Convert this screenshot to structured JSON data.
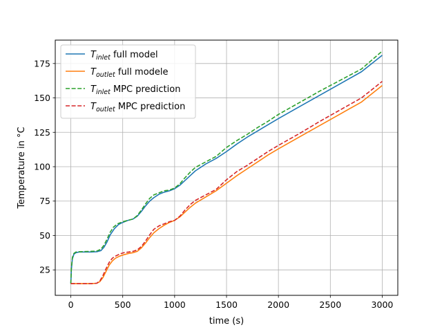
{
  "chart_data": {
    "type": "line",
    "title": "",
    "xlabel": "time (s)",
    "ylabel": "Temperature in °C",
    "xlim": [
      -150,
      3150
    ],
    "ylim": [
      6.5,
      192
    ],
    "xticks": [
      0,
      500,
      1000,
      1500,
      2000,
      2500,
      3000
    ],
    "yticks": [
      25,
      50,
      75,
      100,
      125,
      150,
      175
    ],
    "grid": true,
    "legend_position": "upper-left",
    "series": [
      {
        "name": "T_inlet full model",
        "label_main": "T",
        "label_sub": "inlet",
        "label_rest": " full model",
        "color": "#1f77b4",
        "dash": "solid",
        "x": [
          0,
          5,
          15,
          30,
          50,
          80,
          120,
          200,
          250,
          290,
          320,
          350,
          380,
          420,
          460,
          500,
          550,
          600,
          640,
          680,
          720,
          760,
          800,
          850,
          900,
          950,
          1000,
          1050,
          1100,
          1150,
          1200,
          1300,
          1400,
          1500,
          1600,
          1700,
          1800,
          1900,
          2000,
          2200,
          2400,
          2600,
          2800,
          3000
        ],
        "y": [
          15,
          25,
          33,
          36.5,
          37.5,
          38,
          38,
          38,
          38.2,
          39,
          41.5,
          45.5,
          50.5,
          55,
          58,
          59.5,
          61,
          62,
          64,
          67.5,
          71.5,
          75,
          77.5,
          80,
          81.5,
          82.5,
          84,
          86.5,
          90,
          93.5,
          97,
          102,
          106,
          111,
          116.5,
          121.5,
          126,
          130.5,
          135,
          143.5,
          152,
          160.5,
          169,
          181
        ]
      },
      {
        "name": "T_outlet full modele",
        "label_main": "T",
        "label_sub": "outlet",
        "label_rest": " full modele",
        "color": "#ff7f0e",
        "dash": "solid",
        "x": [
          0,
          50,
          100,
          200,
          250,
          280,
          310,
          340,
          370,
          400,
          430,
          470,
          510,
          560,
          600,
          640,
          680,
          720,
          760,
          800,
          850,
          900,
          950,
          1000,
          1050,
          1100,
          1150,
          1200,
          1300,
          1400,
          1500,
          1600,
          1700,
          1800,
          1900,
          2000,
          2200,
          2400,
          2600,
          2800,
          3000
        ],
        "y": [
          15,
          15,
          15,
          15,
          15.3,
          16.5,
          19.5,
          24,
          28.5,
          31.5,
          33.5,
          35,
          36,
          37,
          37.5,
          38.5,
          41,
          44.5,
          48.5,
          52,
          55,
          57.5,
          59.5,
          61,
          63.5,
          67,
          70.5,
          73.5,
          78,
          82.5,
          88,
          93.5,
          98.5,
          103.5,
          108.5,
          113,
          121.5,
          130,
          138.5,
          147,
          159
        ]
      },
      {
        "name": "T_inlet MPC prediction",
        "label_main": "T",
        "label_sub": "inlet",
        "label_rest": " MPC prediction",
        "color": "#2ca02c",
        "dash": "dashed",
        "x": [
          0,
          5,
          15,
          30,
          50,
          80,
          120,
          200,
          250,
          290,
          320,
          350,
          380,
          410,
          450,
          500,
          550,
          600,
          640,
          680,
          720,
          760,
          800,
          850,
          900,
          950,
          1000,
          1050,
          1100,
          1150,
          1200,
          1300,
          1400,
          1500,
          1600,
          1700,
          1800,
          1900,
          2000,
          2200,
          2400,
          2600,
          2800,
          3000
        ],
        "y": [
          15,
          26,
          34,
          37,
          38,
          38.2,
          38.3,
          38.5,
          38.7,
          40,
          43,
          47.5,
          52.5,
          56,
          58.5,
          60,
          61,
          62,
          64.5,
          68.5,
          73,
          77,
          79.5,
          81,
          82.5,
          83,
          84.5,
          87.5,
          92,
          96,
          99.5,
          103.5,
          107.5,
          114,
          119,
          123.5,
          128.5,
          133,
          138,
          146.5,
          155,
          163,
          171,
          184
        ]
      },
      {
        "name": "T_outlet MPC prediction",
        "label_main": "T",
        "label_sub": "outlet",
        "label_rest": " MPC prediction",
        "color": "#d62728",
        "dash": "dashed",
        "x": [
          0,
          50,
          100,
          200,
          250,
          280,
          310,
          340,
          370,
          400,
          430,
          470,
          510,
          560,
          600,
          640,
          680,
          720,
          760,
          800,
          850,
          900,
          950,
          1000,
          1050,
          1100,
          1150,
          1200,
          1300,
          1400,
          1500,
          1600,
          1700,
          1800,
          1900,
          2000,
          2200,
          2400,
          2600,
          2800,
          3000
        ],
        "y": [
          15,
          15,
          15,
          15,
          15.3,
          17,
          21,
          26,
          30.5,
          33.5,
          35,
          36.5,
          37.5,
          38,
          38.5,
          39.5,
          42,
          46,
          50.5,
          54.5,
          57,
          58.5,
          60,
          61,
          64,
          68.5,
          72.5,
          75.5,
          79.5,
          83.5,
          90.5,
          96.5,
          101,
          106,
          111,
          115.5,
          124,
          133,
          141.5,
          150,
          162
        ]
      }
    ]
  }
}
